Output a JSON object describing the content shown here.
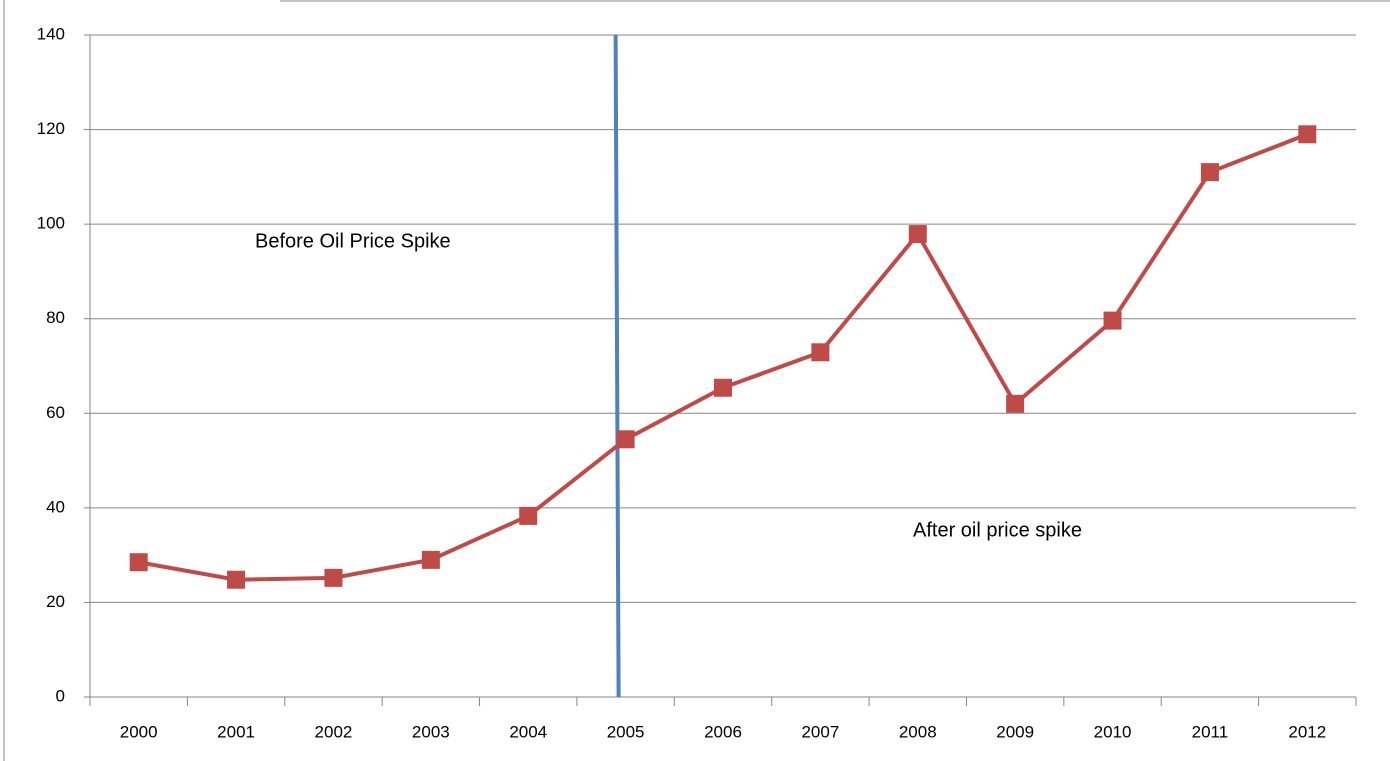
{
  "chart_data": {
    "type": "line",
    "categories": [
      "2000",
      "2001",
      "2002",
      "2003",
      "2004",
      "2005",
      "2006",
      "2007",
      "2008",
      "2009",
      "2010",
      "2011",
      "2012"
    ],
    "series": [
      {
        "color": "#be4b48",
        "values": [
          28.5,
          24.8,
          25.2,
          29,
          38.3,
          54.5,
          65.4,
          72.9,
          97.9,
          62,
          79.6,
          111,
          119
        ]
      }
    ],
    "ylim": [
      0,
      140
    ],
    "yticks": [
      0,
      20,
      40,
      60,
      80,
      100,
      120,
      140
    ],
    "grid": true,
    "vline": "2005",
    "vline_color": "#4f81bd",
    "annotations": [
      "Before Oil Price Spike",
      "After oil price spike"
    ]
  }
}
